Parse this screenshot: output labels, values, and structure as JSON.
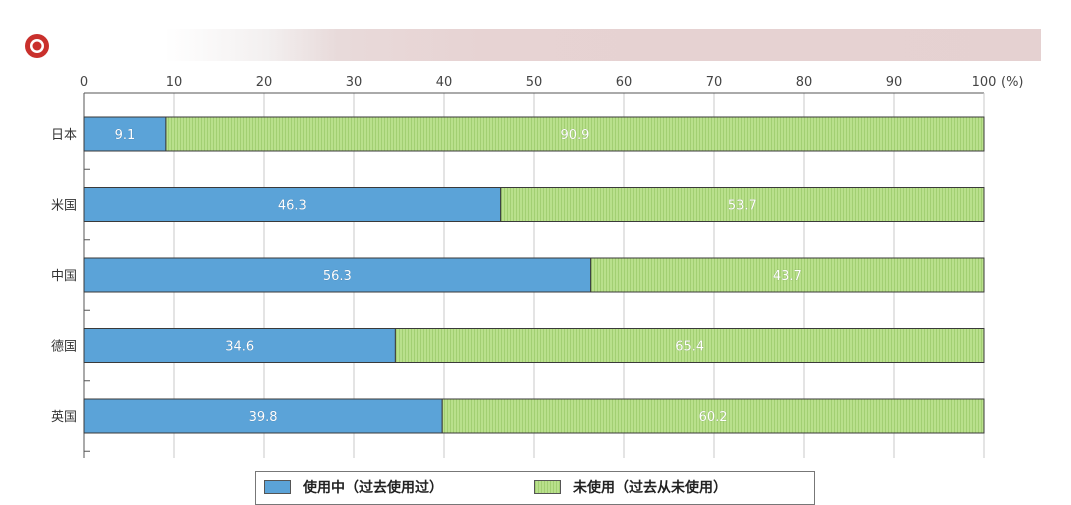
{
  "colors": {
    "in_use": "#5ba3d8",
    "not_used": "#b9e08c",
    "not_used_stripe": "#a2cf72",
    "grid": "#c8c8c8",
    "axis": "#555555",
    "bar_stroke": "#3a3a3a"
  },
  "logo": {
    "icon": "red-circle-logo"
  },
  "chart_data": {
    "type": "bar",
    "orientation": "horizontal",
    "stacked": true,
    "unit_label": "(%)",
    "xlim": [
      0,
      100
    ],
    "ticks": [
      0,
      10,
      20,
      30,
      40,
      50,
      60,
      70,
      80,
      90,
      100
    ],
    "tick_labels": [
      "0",
      "10",
      "20",
      "30",
      "40",
      "50",
      "60",
      "70",
      "80",
      "90",
      "100"
    ],
    "categories": [
      "日本",
      "米国",
      "中国",
      "德国",
      "英国"
    ],
    "series": [
      {
        "name": "使用中（过去使用过）",
        "values": [
          9.1,
          46.3,
          56.3,
          34.6,
          39.8
        ],
        "value_labels": [
          "9.1",
          "46.3",
          "56.3",
          "34.6",
          "39.8"
        ]
      },
      {
        "name": "未使用（过去从未使用）",
        "values": [
          90.9,
          53.7,
          43.7,
          65.4,
          60.2
        ],
        "value_labels": [
          "90.9",
          "53.7",
          "43.7",
          "65.4",
          "60.2"
        ]
      }
    ],
    "grid": true,
    "legend_position": "bottom"
  }
}
